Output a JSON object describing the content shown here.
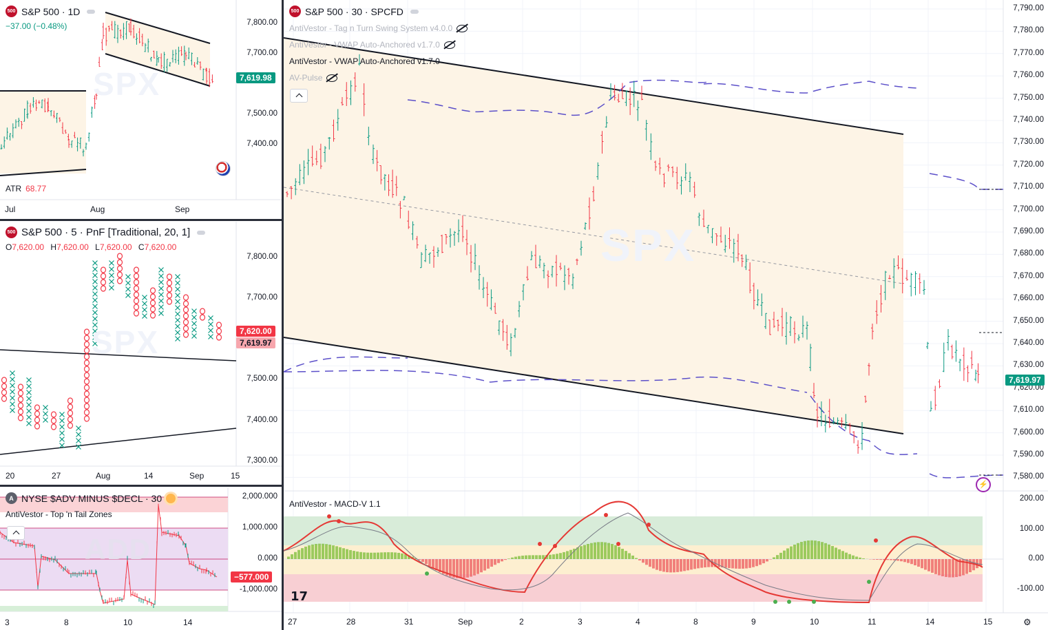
{
  "colors": {
    "up": "#089981",
    "down": "#f23645",
    "vwap": "#5b4fc9",
    "channel_fill": "#fdf4e6",
    "macd_line_up": "#4caf50",
    "macd_line_down": "#e53935"
  },
  "main": {
    "title": "S&P 500 · 30 · SPCFD",
    "badge": "500",
    "indicators": [
      {
        "label": "AntiVestor - Tag n Turn Swing System v4.0.0",
        "dim": true
      },
      {
        "label": "AntiVestor - VWAP Auto-Anchored v1.7.0",
        "dim": true
      },
      {
        "label": "AntiVestor - VWAP Auto-Anchored v1.7.0",
        "dim": false
      },
      {
        "label": "AV-Pulse",
        "dim": true
      }
    ],
    "watermark": "SPX",
    "price_axis": [
      "7,790.00",
      "7,780.00",
      "7,770.00",
      "7,760.00",
      "7,750.00",
      "7,740.00",
      "7,730.00",
      "7,720.00",
      "7,710.00",
      "7,700.00",
      "7,690.00",
      "7,680.00",
      "7,670.00",
      "7,660.00",
      "7,650.00",
      "7,640.00",
      "7,630.00",
      "7,620.00",
      "7,610.00",
      "7,600.00",
      "7,590.00",
      "7,580.00"
    ],
    "last_price": "7,619.97",
    "time_axis": [
      "27",
      "28",
      "31",
      "Sep",
      "2",
      "3",
      "4",
      "8",
      "9",
      "10",
      "11",
      "14",
      "15"
    ],
    "macd": {
      "label": "AntiVestor - MACD-V 1.1",
      "axis": [
        "200.00",
        "100.00",
        "0.00",
        "-100.00"
      ]
    }
  },
  "daily": {
    "title": "S&P 500 · 1D",
    "badge": "500",
    "change": "−37.00 (−0.48%)",
    "price_axis": [
      "7,800.00",
      "7,700.00",
      "7,500.00",
      "7,400.00"
    ],
    "last_price": "7,619.98",
    "atr_label": "ATR",
    "atr_value": "68.77",
    "time_axis": [
      "Jul",
      "Aug",
      "Sep"
    ],
    "watermark": "SPX"
  },
  "pnf": {
    "title": "S&P 500 · 5 · PnF [Traditional, 20, 1]",
    "badge": "500",
    "ohlc": {
      "o_label": "O",
      "o": "7,620.00",
      "h_label": "H",
      "h": "7,620.00",
      "l_label": "L",
      "l": "7,620.00",
      "c_label": "C",
      "c": "7,620.00"
    },
    "price_axis": [
      "7,800.00",
      "7,700.00",
      "7,500.00",
      "7,400.00",
      "7,300.00"
    ],
    "last_price": "7,620.00",
    "last_price2": "7,619.97",
    "time_axis": [
      "20",
      "27",
      "Aug",
      "14",
      "Sep",
      "15"
    ],
    "watermark": "SPX"
  },
  "breadth": {
    "title": "NYSE $ADV MINUS $DECL · 30",
    "badge": "A",
    "indicator": "AntiVestor - Top 'n Tail Zones",
    "price_axis": [
      "2,000.000",
      "1,000.000",
      "0.000",
      "-1,000.000"
    ],
    "last_value": "−577.000",
    "time_axis": [
      "3",
      "8",
      "10",
      "14"
    ],
    "watermark": "ADD"
  }
}
